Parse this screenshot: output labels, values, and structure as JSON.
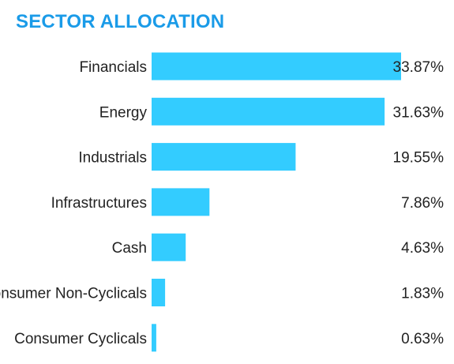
{
  "chart_data": {
    "type": "bar",
    "orientation": "horizontal",
    "title": "SECTOR ALLOCATION",
    "categories": [
      "Financials",
      "Energy",
      "Industrials",
      "Infrastructures",
      "Cash",
      "Consumer Non-Cyclicals",
      "Consumer Cyclicals"
    ],
    "values": [
      33.87,
      31.63,
      19.55,
      7.86,
      4.63,
      1.83,
      0.63
    ],
    "value_labels": [
      "33.87%",
      "31.63%",
      "19.55%",
      "7.86%",
      "4.63%",
      "1.83%",
      "0.63%"
    ],
    "xlim": [
      0,
      33.87
    ],
    "grid": false,
    "legend": "none"
  },
  "colors": {
    "title": "#1a9be8",
    "bar": "#33ccff",
    "text": "#222222"
  }
}
